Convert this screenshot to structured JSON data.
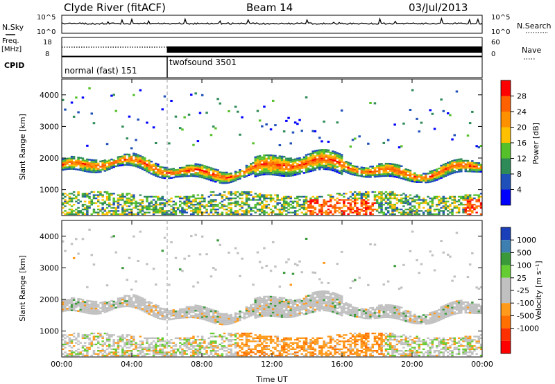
{
  "header": {
    "station": "Clyde River (fitACF)",
    "beam": "Beam 14",
    "date": "03/Jul/2013"
  },
  "strips": {
    "nsky_label": "N.Sky",
    "nsky_ticks": [
      "10^5",
      "10^0"
    ],
    "nsearch_label": "N.Search",
    "nsearch_ticks": [
      "10^5",
      "10^0"
    ],
    "freq_label_1": "Freq.",
    "freq_label_2": "[MHz]",
    "freq_ticks": [
      "18",
      "8"
    ],
    "nave_label": "Nave",
    "nave_ticks": [
      "60",
      "0"
    ],
    "cpid_label": "CPID",
    "cpid_segments": [
      {
        "label": "normal (fast) 151",
        "start_hour": 0,
        "end_hour": 6
      },
      {
        "label": "twofsound 3501",
        "start_hour": 6,
        "end_hour": 24
      }
    ]
  },
  "colors": {
    "power_scale": [
      "#0000ff",
      "#1f4fb8",
      "#2e8b57",
      "#55c02a",
      "#ffc000",
      "#ff9000",
      "#ff6000",
      "#ff0000"
    ],
    "velocity_scale": [
      "#1a3fb8",
      "#3d7fb0",
      "#3a9a3a",
      "#66cc33",
      "#c0c0c0",
      "#c0c0c0",
      "#ff9a1a",
      "#ff7000",
      "#ff3000",
      "#ff0000"
    ]
  },
  "chart_data": [
    {
      "type": "heatmap",
      "panel": "power",
      "ylabel": "Slant Range [km]",
      "yticks": [
        1000,
        2000,
        3000,
        4000
      ],
      "ylim": [
        180,
        4500
      ],
      "xlim": [
        0,
        24
      ],
      "colorbar_label": "Power [dB]",
      "colorbar_ticks": [
        "4",
        "8",
        "12",
        "16",
        "20",
        "24",
        "28"
      ],
      "colorbar_range": [
        0,
        32
      ],
      "echo_bands": [
        {
          "start_hour": 0,
          "end_hour": 24,
          "range_min": 1300,
          "range_max": 2200,
          "level": 18
        },
        {
          "start_hour": 0,
          "end_hour": 24,
          "range_min": 200,
          "range_max": 900,
          "level": 16
        },
        {
          "start_hour": 14,
          "end_hour": 18,
          "range_min": 300,
          "range_max": 700,
          "level": 26
        },
        {
          "start_hour": 23,
          "end_hour": 24,
          "range_min": 200,
          "range_max": 700,
          "level": 28
        }
      ]
    },
    {
      "type": "heatmap",
      "panel": "velocity",
      "ylabel": "Slant Range [km]",
      "xlabel": "Time UT",
      "yticks": [
        1000,
        2000,
        3000,
        4000
      ],
      "ylim": [
        180,
        4500
      ],
      "xlim": [
        0,
        24
      ],
      "xticks": [
        "00:00",
        "04:00",
        "08:00",
        "12:00",
        "16:00",
        "20:00",
        "00:00"
      ],
      "colorbar_label": "Velocity [m s⁻¹]",
      "colorbar_ticks": [
        "1000",
        "500",
        "100",
        "25",
        "-25",
        "-100",
        "-500",
        "-1000"
      ],
      "echo_bands": [
        {
          "start_hour": 0,
          "end_hour": 24,
          "range_min": 1300,
          "range_max": 2200,
          "level": "-25 to 25"
        },
        {
          "start_hour": 10,
          "end_hour": 18,
          "range_min": 300,
          "range_max": 900,
          "level": "-100 to -500"
        },
        {
          "start_hour": 0,
          "end_hour": 4,
          "range_min": 300,
          "range_max": 800,
          "level": "25 to 100"
        }
      ]
    }
  ]
}
